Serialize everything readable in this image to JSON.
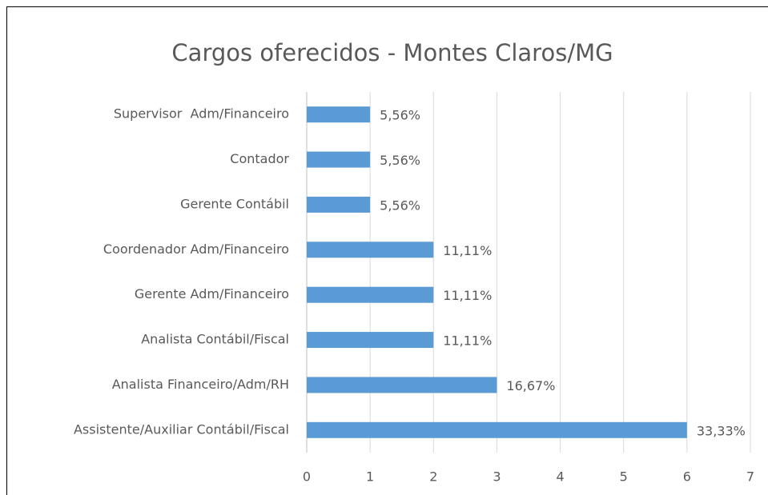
{
  "chart_data": {
    "type": "barh",
    "title": "Cargos oferecidos - Montes Claros/MG",
    "categories": [
      "Supervisor  Adm/Financeiro",
      "Contador",
      "Gerente Contábil",
      "Coordenador Adm/Financeiro",
      "Gerente Adm/Financeiro",
      "Analista Contábil/Fiscal",
      "Analista Financeiro/Adm/RH",
      "Assistente/Auxiliar Contábil/Fiscal"
    ],
    "values": [
      1,
      1,
      1,
      2,
      2,
      2,
      3,
      6
    ],
    "value_labels": [
      "5,56%",
      "5,56%",
      "5,56%",
      "11,11%",
      "11,11%",
      "11,11%",
      "16,67%",
      "33,33%"
    ],
    "color": "#5b9bd5",
    "xlim": [
      0,
      7
    ],
    "xticks": [
      0,
      1,
      2,
      3,
      4,
      5,
      6,
      7
    ],
    "grid": true
  }
}
